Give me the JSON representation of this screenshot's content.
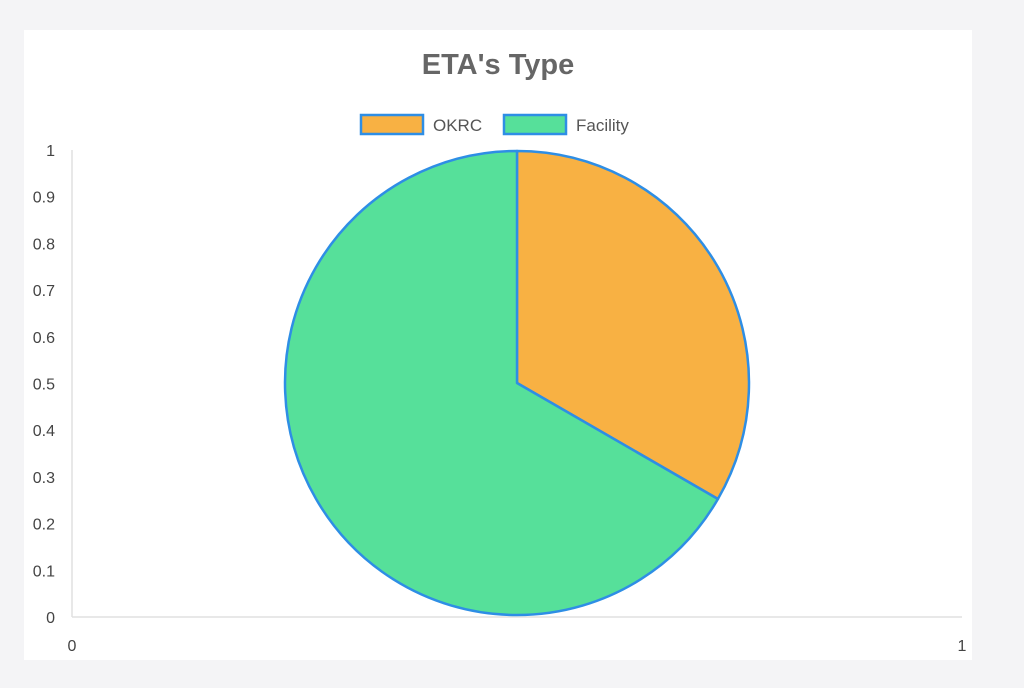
{
  "chart_data": {
    "type": "pie",
    "title": "ETA's Type",
    "categories": [
      "OKRC",
      "Facility"
    ],
    "values": [
      1,
      2
    ],
    "colors": [
      "#f8b143",
      "#56e09a"
    ],
    "border_color": "#2e8ee5",
    "legend": {
      "placement": "top",
      "entries": [
        "OKRC",
        "Facility"
      ]
    },
    "y_axis": {
      "range": [
        0,
        1
      ],
      "ticks": [
        "0",
        "0.1",
        "0.2",
        "0.3",
        "0.4",
        "0.5",
        "0.6",
        "0.7",
        "0.8",
        "0.9",
        "1"
      ]
    },
    "x_axis": {
      "range": [
        0,
        1
      ],
      "ticks": [
        "0",
        "1"
      ]
    },
    "grid": false
  }
}
